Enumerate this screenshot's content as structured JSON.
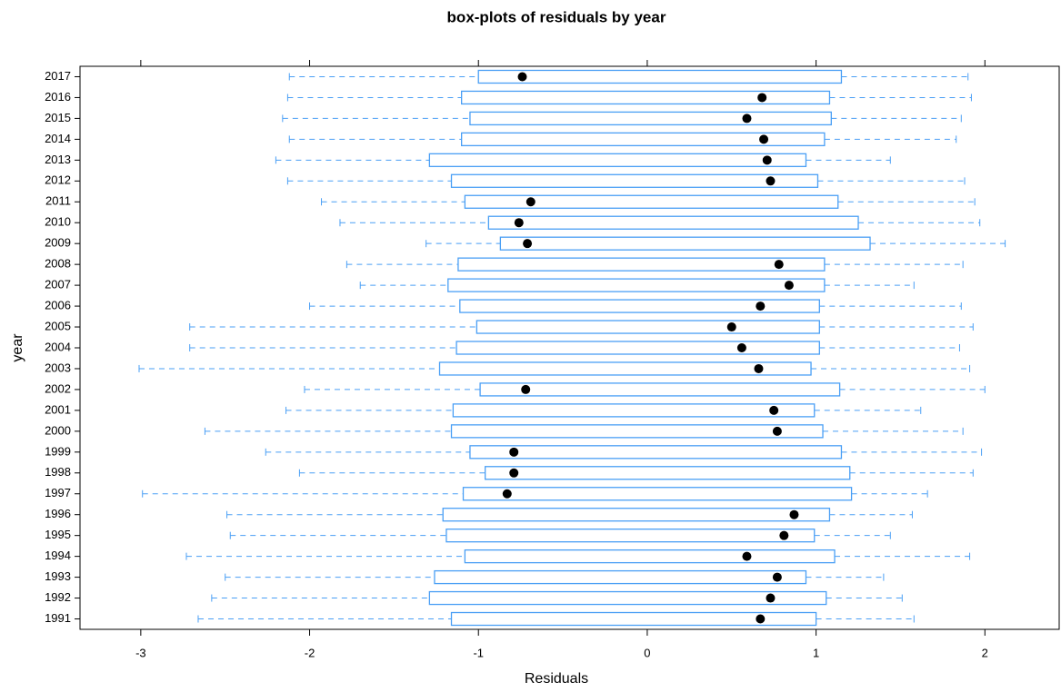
{
  "chart_data": {
    "type": "box",
    "title": "box-plots of residuals by year",
    "xlabel": "Residuals",
    "ylabel": "year",
    "categories": [
      "1991",
      "1992",
      "1993",
      "1994",
      "1995",
      "1996",
      "1997",
      "1998",
      "1999",
      "2000",
      "2001",
      "2002",
      "2003",
      "2004",
      "2005",
      "2006",
      "2007",
      "2008",
      "2009",
      "2010",
      "2011",
      "2012",
      "2013",
      "2014",
      "2015",
      "2016",
      "2017"
    ],
    "min": [
      -2.66,
      -2.58,
      -2.5,
      -2.73,
      -2.47,
      -2.49,
      -2.99,
      -2.06,
      -2.26,
      -2.62,
      -2.14,
      -2.03,
      -3.01,
      -2.71,
      -2.71,
      -2.0,
      -1.7,
      -1.78,
      -1.31,
      -1.82,
      -1.93,
      -2.13,
      -2.2,
      -2.12,
      -2.16,
      -2.13,
      -2.12
    ],
    "q1": [
      -1.16,
      -1.29,
      -1.26,
      -1.08,
      -1.19,
      -1.21,
      -1.09,
      -0.96,
      -1.05,
      -1.16,
      -1.15,
      -0.99,
      -1.23,
      -1.13,
      -1.01,
      -1.11,
      -1.18,
      -1.12,
      -0.87,
      -0.94,
      -1.08,
      -1.16,
      -1.29,
      -1.1,
      -1.05,
      -1.1,
      -1.0
    ],
    "median": [
      0.67,
      0.73,
      0.77,
      0.59,
      0.81,
      0.87,
      -0.83,
      -0.79,
      -0.79,
      0.77,
      0.75,
      -0.72,
      0.66,
      0.56,
      0.5,
      0.67,
      0.84,
      0.78,
      -0.71,
      -0.76,
      -0.69,
      0.73,
      0.71,
      0.69,
      0.59,
      0.68,
      -0.74
    ],
    "q3": [
      1.0,
      1.06,
      0.94,
      1.11,
      0.99,
      1.08,
      1.21,
      1.2,
      1.15,
      1.04,
      0.99,
      1.14,
      0.97,
      1.02,
      1.02,
      1.02,
      1.05,
      1.05,
      1.32,
      1.25,
      1.13,
      1.01,
      0.94,
      1.05,
      1.09,
      1.08,
      1.15
    ],
    "max": [
      1.58,
      1.51,
      1.4,
      1.91,
      1.44,
      1.57,
      1.66,
      1.93,
      1.98,
      1.87,
      1.62,
      2.0,
      1.91,
      1.85,
      1.93,
      1.86,
      1.58,
      1.87,
      2.12,
      1.97,
      1.94,
      1.88,
      1.44,
      1.83,
      1.86,
      1.92,
      1.9
    ],
    "color": "#4a9ff5",
    "median_color": "#000000",
    "xlim": [
      -3.36,
      2.44
    ],
    "xticks": [
      -3,
      -2,
      -1,
      0,
      1,
      2
    ]
  }
}
